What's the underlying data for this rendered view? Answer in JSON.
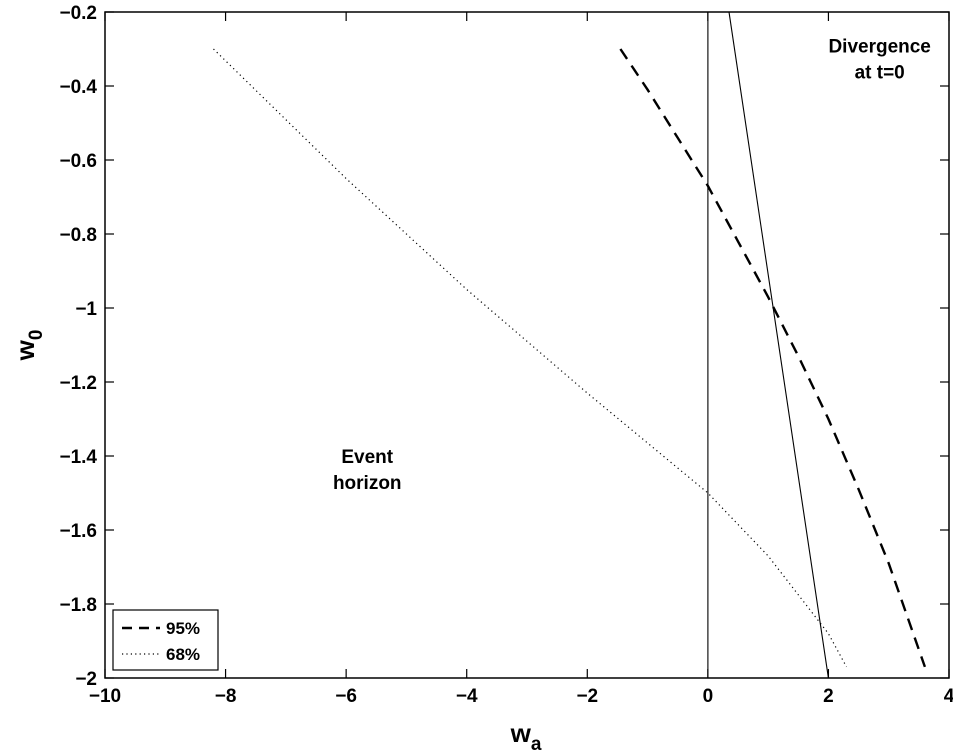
{
  "chart_data": {
    "type": "line",
    "xlabel": "w",
    "xlabel_sub": "a",
    "ylabel": "w",
    "ylabel_sub": "0",
    "xlim": [
      -10,
      4
    ],
    "ylim": [
      -2,
      -0.2
    ],
    "xticks": [
      -10,
      -8,
      -6,
      -4,
      -2,
      0,
      2,
      4
    ],
    "xtick_labels": [
      "−10",
      "−8",
      "−6",
      "−4",
      "−2",
      "0",
      "2",
      "4"
    ],
    "yticks": [
      -2,
      -1.8,
      -1.6,
      -1.4,
      -1.2,
      -1,
      -0.8,
      -0.6,
      -0.4,
      -0.2
    ],
    "ytick_labels": [
      "−2",
      "−1.8",
      "−1.6",
      "−1.4",
      "−1.2",
      "−1",
      "−0.8",
      "−0.6",
      "−0.4",
      "−0.2"
    ],
    "grid": false,
    "legend_position": "bottom-left",
    "series": [
      {
        "name": "95%",
        "style": "dashed",
        "color": "#000000",
        "x": [
          -1.45,
          -1.0,
          -0.5,
          0.0,
          0.5,
          1.0,
          1.5,
          2.0,
          2.5,
          3.0,
          3.6
        ],
        "y": [
          -0.3,
          -0.41,
          -0.54,
          -0.67,
          -0.82,
          -0.97,
          -1.13,
          -1.3,
          -1.49,
          -1.69,
          -1.97
        ]
      },
      {
        "name": "68%",
        "style": "dotted",
        "color": "#000000",
        "x": [
          -8.2,
          -6.0,
          -4.0,
          -2.0,
          0.0,
          1.0,
          2.0,
          2.3
        ],
        "y": [
          -0.3,
          -0.65,
          -0.95,
          -1.23,
          -1.5,
          -1.67,
          -1.88,
          -1.97
        ]
      }
    ],
    "reference_lines": [
      {
        "style": "solid",
        "x": [
          0.0,
          0.0
        ],
        "y": [
          -0.2,
          -2.0
        ]
      },
      {
        "style": "solid",
        "x": [
          0.35,
          2.0
        ],
        "y": [
          -0.2,
          -2.0
        ]
      }
    ],
    "annotations": [
      {
        "lines": [
          "Divergence",
          "at t=0"
        ],
        "x": 2.85,
        "y": -0.29
      },
      {
        "lines": [
          "Event",
          "horizon"
        ],
        "x": -5.65,
        "y": -1.4
      }
    ]
  }
}
